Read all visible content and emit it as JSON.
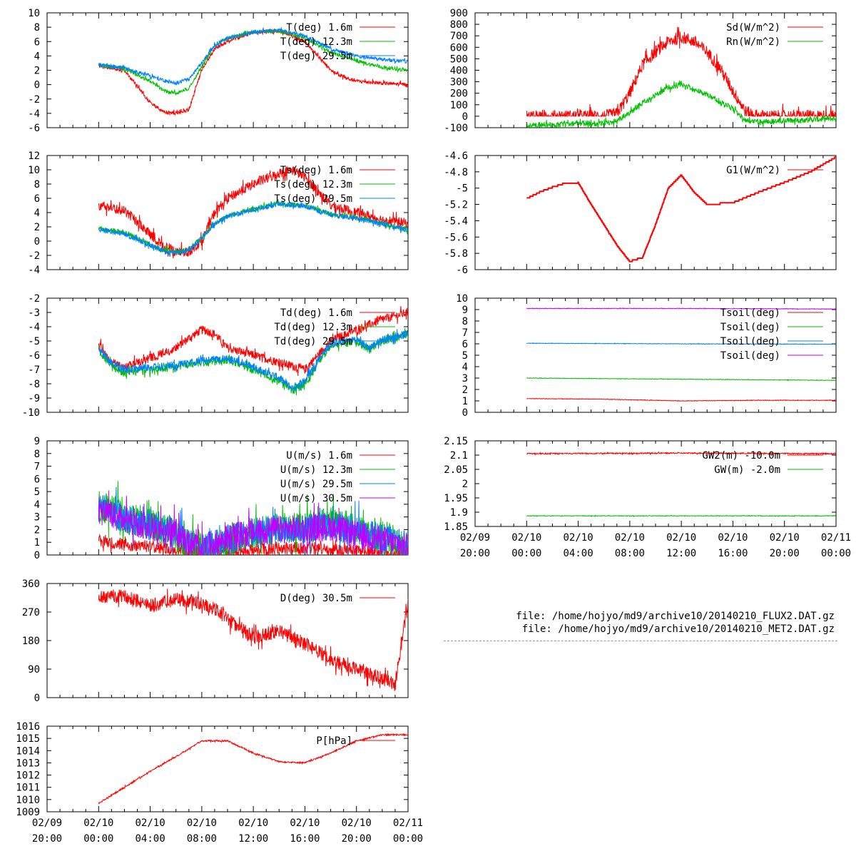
{
  "colors": {
    "red": "#ff0000",
    "green": "#00c000",
    "blue": "#0080ff",
    "purple": "#c000ff"
  },
  "files": [
    "file: /home/hojyo/md9/archive10/20140210_FLUX2.DAT.gz",
    "file: /home/hojyo/md9/archive10/20140210_MET2.DAT.gz"
  ],
  "chart_data": [
    {
      "id": "temp",
      "type": "line",
      "column": "left",
      "ylim": [
        -6,
        10
      ],
      "yticks": [
        -6,
        -4,
        -2,
        0,
        2,
        4,
        6,
        8,
        10
      ],
      "x_range_hours": [
        -4,
        24
      ],
      "series": [
        {
          "name": "T(deg)  1.6m",
          "color": "red",
          "noise": 0.25,
          "t": [
            0,
            2,
            4,
            5,
            6,
            7,
            8,
            9,
            10,
            12,
            14,
            16,
            18,
            19,
            20,
            22,
            24
          ],
          "v": [
            2.6,
            2,
            -2.5,
            -3.8,
            -4,
            -3.5,
            2,
            5,
            6,
            7.3,
            7.5,
            6,
            2,
            1,
            0.5,
            0.2,
            0
          ]
        },
        {
          "name": "T(deg) 12.3m",
          "color": "green",
          "noise": 0.25,
          "t": [
            0,
            2,
            4,
            5,
            6,
            7,
            8,
            9,
            10,
            12,
            14,
            16,
            18,
            20,
            22,
            24
          ],
          "v": [
            2.7,
            2.2,
            0.5,
            -0.8,
            -1.2,
            -0.5,
            2.5,
            5.5,
            6.5,
            7.3,
            7.5,
            6.5,
            4.5,
            3.3,
            2.4,
            2
          ]
        },
        {
          "name": "T(deg) 29.5m",
          "color": "blue",
          "noise": 0.25,
          "t": [
            0,
            2,
            4,
            5,
            6,
            7,
            8,
            9,
            10,
            12,
            14,
            16,
            18,
            20,
            22,
            24
          ],
          "v": [
            2.8,
            2.3,
            1.2,
            0.6,
            0.2,
            0.8,
            3,
            5.5,
            6.5,
            7.3,
            7.6,
            6.8,
            5,
            4,
            3.5,
            3.2
          ]
        }
      ]
    },
    {
      "id": "tsurf",
      "type": "line",
      "column": "left",
      "ylim": [
        -4,
        12
      ],
      "yticks": [
        -4,
        -2,
        0,
        2,
        4,
        6,
        8,
        10,
        12
      ],
      "x_range_hours": [
        -4,
        24
      ],
      "series": [
        {
          "name": "Ts(deg)  1.6m",
          "color": "red",
          "noise": 0.7,
          "t": [
            0,
            2,
            4,
            5,
            6,
            7,
            8,
            9,
            10,
            12,
            14,
            15,
            16,
            18,
            20,
            22,
            24
          ],
          "v": [
            5,
            4.3,
            1,
            -0.8,
            -1.5,
            -1.5,
            0,
            4,
            6,
            8,
            9.5,
            10,
            9,
            5,
            4,
            3,
            2.5
          ]
        },
        {
          "name": "Ts(deg) 12.3m",
          "color": "green",
          "noise": 0.35,
          "t": [
            0,
            2,
            4,
            5,
            6,
            7,
            8,
            9,
            10,
            12,
            14,
            16,
            18,
            20,
            22,
            24
          ],
          "v": [
            1.8,
            1.2,
            -0.5,
            -1.3,
            -1.5,
            -1.2,
            0.5,
            2.5,
            3.5,
            4.5,
            5.3,
            5,
            3.8,
            3.3,
            2.5,
            1.6
          ]
        },
        {
          "name": "Ts(deg) 29.5m",
          "color": "blue",
          "noise": 0.35,
          "t": [
            0,
            2,
            4,
            5,
            6,
            7,
            8,
            9,
            10,
            12,
            14,
            16,
            18,
            20,
            22,
            24
          ],
          "v": [
            1.6,
            1,
            -0.6,
            -1.4,
            -1.6,
            -1.3,
            0.4,
            2.4,
            3.4,
            4.4,
            5.2,
            4.9,
            3.7,
            3.2,
            2.4,
            1.5
          ]
        }
      ]
    },
    {
      "id": "dew",
      "type": "line",
      "column": "left",
      "ylim": [
        -10,
        -2
      ],
      "yticks": [
        -10,
        -9,
        -8,
        -7,
        -6,
        -5,
        -4,
        -3,
        -2
      ],
      "x_range_hours": [
        -4,
        24
      ],
      "series": [
        {
          "name": "Td(deg)  1.6m",
          "color": "red",
          "noise": 0.3,
          "t": [
            0,
            1,
            2,
            4,
            6,
            7,
            8,
            9,
            10,
            12,
            14,
            16,
            17,
            18,
            20,
            22,
            24
          ],
          "v": [
            -5.2,
            -6.5,
            -6.8,
            -6.2,
            -5.5,
            -4.8,
            -4.2,
            -4.5,
            -5.5,
            -6,
            -6.5,
            -7,
            -6,
            -5,
            -4.2,
            -3.5,
            -3
          ]
        },
        {
          "name": "Td(deg) 12.3m",
          "color": "green",
          "noise": 0.3,
          "t": [
            0,
            1,
            2,
            4,
            6,
            8,
            10,
            12,
            14,
            15,
            16,
            17,
            18,
            20,
            21,
            22,
            24
          ],
          "v": [
            -5.6,
            -6.8,
            -7.2,
            -7,
            -6.8,
            -6.5,
            -6.3,
            -7,
            -7.8,
            -8.5,
            -8,
            -6.5,
            -5.3,
            -5,
            -5.6,
            -5,
            -4.5
          ]
        },
        {
          "name": "Td(deg) 29.5m",
          "color": "blue",
          "noise": 0.28,
          "t": [
            0,
            1,
            2,
            4,
            6,
            8,
            10,
            12,
            14,
            15,
            16,
            17,
            18,
            20,
            21,
            22,
            24
          ],
          "v": [
            -5.5,
            -6.6,
            -7,
            -6.9,
            -6.7,
            -6.4,
            -6.2,
            -6.8,
            -7.6,
            -8.3,
            -7.8,
            -6.3,
            -5.2,
            -4.9,
            -5.5,
            -4.9,
            -4.5
          ]
        }
      ]
    },
    {
      "id": "wind",
      "type": "line",
      "column": "left",
      "ylim": [
        0,
        9
      ],
      "yticks": [
        0,
        1,
        2,
        3,
        4,
        5,
        6,
        7,
        8,
        9
      ],
      "x_range_hours": [
        -4,
        24
      ],
      "series": [
        {
          "name": "U(m/s)  1.6m",
          "color": "red",
          "noise": 0.5,
          "min": 0,
          "t": [
            0,
            2,
            4,
            6,
            8,
            10,
            12,
            14,
            16,
            18,
            20,
            22,
            24
          ],
          "v": [
            1.2,
            0.8,
            0.7,
            0.4,
            0.2,
            0.3,
            0.4,
            0.5,
            0.6,
            0.4,
            0.3,
            0.2,
            0.2
          ]
        },
        {
          "name": "U(m/s) 12.3m",
          "color": "green",
          "noise": 1.3,
          "min": 0,
          "t": [
            0,
            2,
            4,
            6,
            7,
            8,
            10,
            12,
            14,
            16,
            18,
            20,
            22,
            24
          ],
          "v": [
            4,
            3,
            2.3,
            1.8,
            0.8,
            0.4,
            1.2,
            1.8,
            2,
            2.2,
            2.5,
            2,
            1.5,
            0.6
          ]
        },
        {
          "name": "U(m/s) 29.5m",
          "color": "blue",
          "noise": 1.2,
          "min": 0,
          "t": [
            0,
            2,
            4,
            6,
            7,
            8,
            10,
            12,
            14,
            16,
            18,
            20,
            22,
            24
          ],
          "v": [
            3.8,
            2.9,
            2.2,
            1.8,
            0.8,
            0.4,
            1.2,
            1.8,
            2,
            2.1,
            2.4,
            2,
            1.4,
            0.6
          ]
        },
        {
          "name": "U(m/s) 30.5m",
          "color": "purple",
          "noise": 1.1,
          "min": 0,
          "t": [
            0,
            2,
            4,
            6,
            7,
            8,
            10,
            12,
            14,
            16,
            18,
            20,
            22,
            24
          ],
          "v": [
            3.5,
            2.8,
            2.2,
            1.8,
            0.9,
            0.5,
            1.3,
            1.8,
            2,
            2.1,
            2.2,
            1.6,
            1.2,
            0.5
          ]
        }
      ]
    },
    {
      "id": "dir",
      "type": "line",
      "column": "left",
      "ylim": [
        0,
        360
      ],
      "yticks": [
        0,
        90,
        180,
        270,
        360
      ],
      "x_range_hours": [
        -4,
        24
      ],
      "series": [
        {
          "name": "D(deg)  30.5m",
          "color": "red",
          "noise": 22,
          "min": 0,
          "max": 360,
          "t": [
            0,
            2,
            4,
            6,
            8,
            9,
            10,
            12,
            14,
            16,
            18,
            20,
            22,
            23,
            24
          ],
          "v": [
            320,
            320,
            290,
            310,
            300,
            280,
            250,
            190,
            210,
            170,
            120,
            90,
            60,
            40,
            300
          ]
        }
      ]
    },
    {
      "id": "pres",
      "type": "line",
      "column": "left",
      "ylim": [
        1009,
        1016
      ],
      "yticks": [
        1009,
        1010,
        1011,
        1012,
        1013,
        1014,
        1015,
        1016
      ],
      "x_range_hours": [
        -4,
        24
      ],
      "xticks": [
        [
          "02/09",
          "20:00"
        ],
        [
          "02/10",
          "00:00"
        ],
        [
          "02/10",
          "04:00"
        ],
        [
          "02/10",
          "08:00"
        ],
        [
          "02/10",
          "12:00"
        ],
        [
          "02/10",
          "16:00"
        ],
        [
          "02/10",
          "20:00"
        ],
        [
          "02/11",
          "00:00"
        ]
      ],
      "series": [
        {
          "name": "P[hPa]",
          "color": "red",
          "noise": 0.06,
          "t": [
            0,
            2,
            4,
            6,
            8,
            10,
            12,
            14,
            16,
            18,
            20,
            22,
            24
          ],
          "v": [
            1009.7,
            1011,
            1012.3,
            1013.5,
            1014.8,
            1014.8,
            1013.8,
            1013.1,
            1013,
            1013.8,
            1014.8,
            1015.3,
            1015.3
          ]
        }
      ]
    },
    {
      "id": "rad",
      "type": "line",
      "column": "right",
      "ylim": [
        -100,
        900
      ],
      "yticks": [
        -100,
        0,
        100,
        200,
        300,
        400,
        500,
        600,
        700,
        800,
        900
      ],
      "x_range_hours": [
        -4,
        24
      ],
      "series": [
        {
          "name": "Sd(W/m^2)",
          "color": "red",
          "noise": 55,
          "min": 0,
          "t": [
            0,
            6,
            7,
            8,
            9,
            10,
            11,
            12,
            13,
            14,
            15,
            16,
            17,
            18,
            24
          ],
          "v": [
            0,
            0,
            20,
            200,
            450,
            560,
            650,
            690,
            650,
            560,
            420,
            220,
            40,
            0,
            0
          ]
        },
        {
          "name": "Rn(W/m^2)",
          "color": "green",
          "noise": 25,
          "t": [
            0,
            6,
            7,
            8,
            9,
            10,
            11,
            12,
            13,
            14,
            15,
            16,
            17,
            18,
            24
          ],
          "v": [
            -80,
            -60,
            -40,
            30,
            120,
            180,
            250,
            280,
            230,
            190,
            120,
            60,
            -40,
            -50,
            -20
          ]
        }
      ]
    },
    {
      "id": "ground",
      "type": "line",
      "column": "right",
      "ylim": [
        -6,
        -4.6
      ],
      "yticks": [
        -6,
        -5.8,
        -5.6,
        -5.4,
        -5.2,
        -5,
        -4.8,
        -4.6
      ],
      "x_range_hours": [
        -4,
        24
      ],
      "series": [
        {
          "name": "G1(W/m^2)",
          "color": "red",
          "noise": 0,
          "step": 0.02,
          "t": [
            0,
            1,
            2,
            3,
            4,
            5,
            6,
            7,
            8,
            9,
            10,
            11,
            12,
            13,
            14,
            16,
            18,
            20,
            22,
            24
          ],
          "v": [
            -5.13,
            -5.05,
            -4.99,
            -4.94,
            -4.93,
            -5.2,
            -5.45,
            -5.7,
            -5.9,
            -5.85,
            -5.45,
            -5,
            -4.84,
            -5.05,
            -5.2,
            -5.18,
            -5.05,
            -4.93,
            -4.8,
            -4.62
          ]
        }
      ]
    },
    {
      "id": "soil",
      "type": "line",
      "column": "right",
      "ylim": [
        0,
        10
      ],
      "yticks": [
        0,
        1,
        2,
        3,
        4,
        5,
        6,
        7,
        8,
        9,
        10
      ],
      "x_range_hours": [
        -4,
        24
      ],
      "series": [
        {
          "name": "Tsoil(deg)",
          "color": "red",
          "noise": 0.02,
          "t": [
            0,
            6,
            12,
            18,
            24
          ],
          "v": [
            1.2,
            1.15,
            1.0,
            1.05,
            1.05
          ]
        },
        {
          "name": "Tsoil(deg)",
          "color": "green",
          "noise": 0.02,
          "t": [
            0,
            12,
            24
          ],
          "v": [
            3.0,
            2.9,
            2.8
          ]
        },
        {
          "name": "Tsoil(deg)",
          "color": "blue",
          "noise": 0.02,
          "t": [
            0,
            12,
            24
          ],
          "v": [
            6.05,
            6.0,
            5.97
          ]
        },
        {
          "name": "Tsoil(deg)",
          "color": "purple",
          "noise": 0.02,
          "t": [
            0,
            12,
            24
          ],
          "v": [
            9.1,
            9.1,
            9.05
          ]
        }
      ]
    },
    {
      "id": "gw",
      "type": "line",
      "column": "right",
      "ylim": [
        1.85,
        2.15
      ],
      "yticks": [
        1.85,
        1.9,
        1.95,
        2,
        2.05,
        2.1,
        2.15
      ],
      "x_range_hours": [
        -4,
        24
      ],
      "xticks": [
        [
          "02/09",
          "20:00"
        ],
        [
          "02/10",
          "00:00"
        ],
        [
          "02/10",
          "04:00"
        ],
        [
          "02/10",
          "08:00"
        ],
        [
          "02/10",
          "12:00"
        ],
        [
          "02/10",
          "16:00"
        ],
        [
          "02/10",
          "20:00"
        ],
        [
          "02/11",
          "00:00"
        ]
      ],
      "series": [
        {
          "name": "GW2(m) -10.0m",
          "color": "red",
          "noise": 0.002,
          "t": [
            0,
            12,
            24
          ],
          "v": [
            2.105,
            2.107,
            2.105
          ]
        },
        {
          "name": "GW(m) -2.0m",
          "color": "green",
          "noise": 0.001,
          "t": [
            0,
            12,
            24
          ],
          "v": [
            1.887,
            1.887,
            1.887
          ]
        }
      ]
    }
  ]
}
